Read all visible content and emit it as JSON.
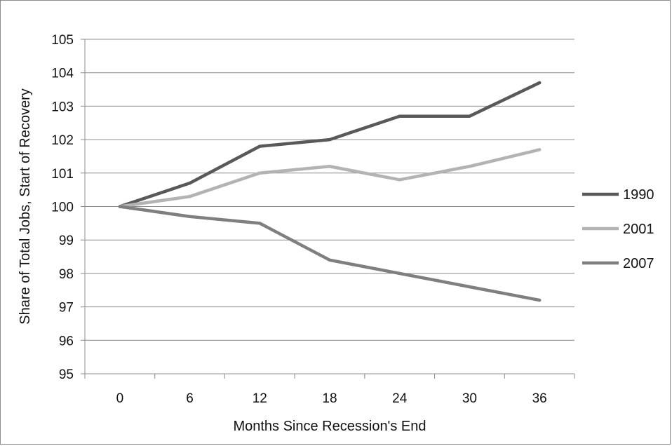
{
  "chart_data": {
    "type": "line",
    "title": "",
    "xlabel": "Months Since Recession's End",
    "ylabel": "Share of Total Jobs, Start of Recovery",
    "categories": [
      "0",
      "6",
      "12",
      "18",
      "24",
      "30",
      "36"
    ],
    "ylim": [
      95,
      105
    ],
    "y_ticks": [
      "95",
      "96",
      "97",
      "98",
      "99",
      "100",
      "101",
      "102",
      "103",
      "104",
      "105"
    ],
    "grid": "horizontal",
    "legend_position": "right",
    "series": [
      {
        "name": "1990",
        "color": "#595959",
        "values": [
          100,
          100.7,
          101.8,
          102.0,
          102.7,
          102.7,
          103.7
        ]
      },
      {
        "name": "2001",
        "color": "#b3b3b3",
        "values": [
          100,
          100.3,
          101.0,
          101.2,
          100.8,
          101.2,
          101.7
        ]
      },
      {
        "name": "2007",
        "color": "#7f7f7f",
        "values": [
          100,
          99.7,
          99.5,
          98.4,
          98.0,
          97.6,
          97.2
        ]
      }
    ]
  }
}
